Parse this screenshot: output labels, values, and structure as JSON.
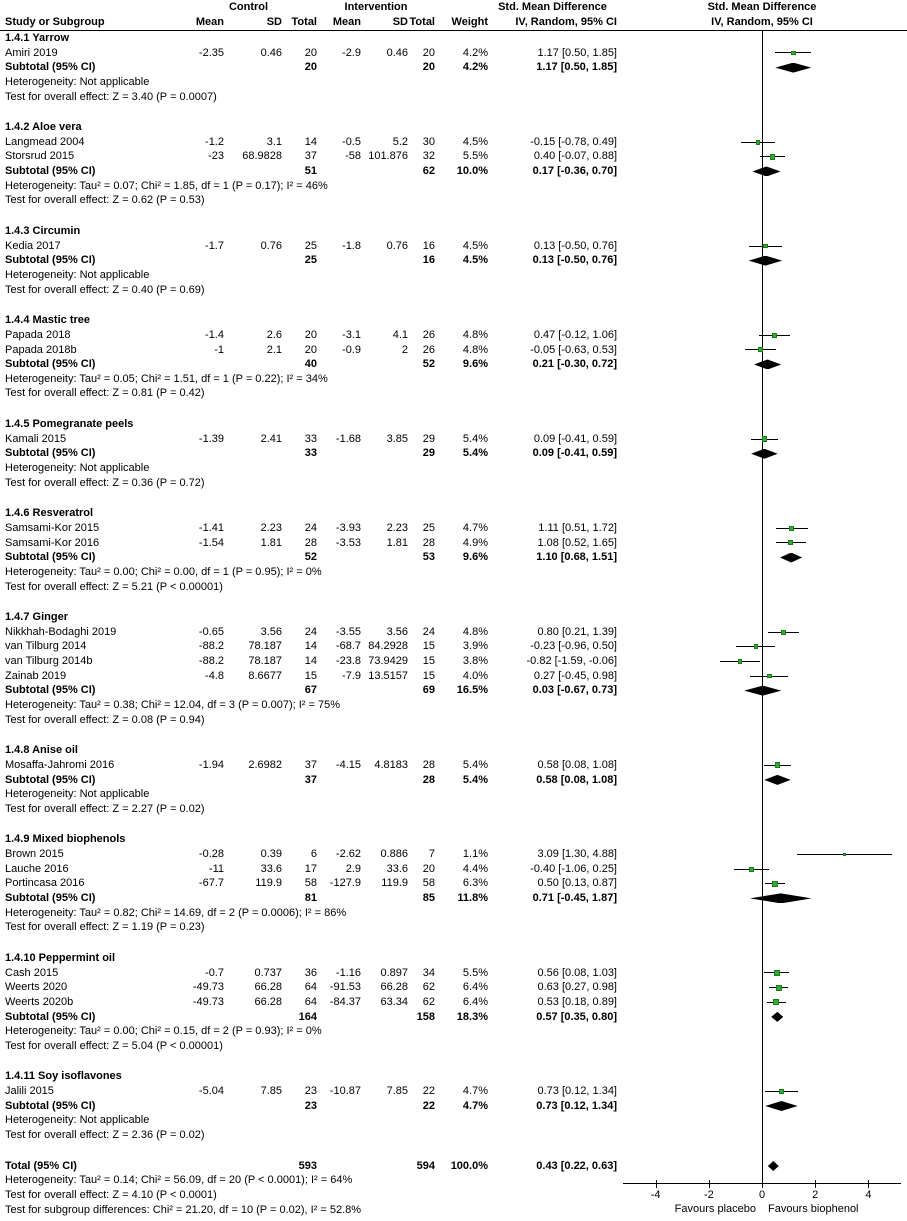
{
  "chart_data": {
    "type": "forest",
    "title_columns": {
      "study_or_subgroup": "Study or Subgroup",
      "control": "Control",
      "intervention": "Intervention",
      "smd_table": "Std. Mean Difference",
      "smd_plot": "Std. Mean Difference",
      "mean": "Mean",
      "sd": "SD",
      "total": "Total",
      "weight": "Weight",
      "iv_random_table": "IV, Random, 95% CI",
      "iv_random_plot": "IV, Random, 95% CI"
    },
    "labels": {
      "subtotal": "Subtotal (95% CI)",
      "total": "Total (95% CI)"
    },
    "colors": {
      "marker_green": "#33aa33",
      "line_black": "#000000",
      "diamond_black": "#000000"
    },
    "sections": [
      {
        "label": "1.4.1 Yarrow",
        "studies": [
          {
            "name": "Amiri 2019",
            "c_mean": "-2.35",
            "c_sd": "0.46",
            "c_total": "20",
            "i_mean": "-2.9",
            "i_sd": "0.46",
            "i_total": "20",
            "weight": "4.2%",
            "ci": "1.17 [0.50, 1.85]",
            "est": 1.17,
            "lo": 0.5,
            "hi": 1.85,
            "w": 4.2
          }
        ],
        "subtotal": {
          "c_total": "20",
          "i_total": "20",
          "weight": "4.2%",
          "ci": "1.17 [0.50, 1.85]",
          "est": 1.17,
          "lo": 0.5,
          "hi": 1.85
        },
        "heterogeneity": "Heterogeneity: Not applicable",
        "test": "Test for overall effect: Z = 3.40 (P = 0.0007)"
      },
      {
        "label": "1.4.2 Aloe vera",
        "studies": [
          {
            "name": "Langmead 2004",
            "c_mean": "-1.2",
            "c_sd": "3.1",
            "c_total": "14",
            "i_mean": "-0.5",
            "i_sd": "5.2",
            "i_total": "30",
            "weight": "4.5%",
            "ci": "-0.15 [-0.78, 0.49]",
            "est": -0.15,
            "lo": -0.78,
            "hi": 0.49,
            "w": 4.5
          },
          {
            "name": "Storsrud 2015",
            "c_mean": "-23",
            "c_sd": "68.9828",
            "c_total": "37",
            "i_mean": "-58",
            "i_sd": "101.876",
            "i_total": "32",
            "weight": "5.5%",
            "ci": "0.40 [-0.07, 0.88]",
            "est": 0.4,
            "lo": -0.07,
            "hi": 0.88,
            "w": 5.5
          }
        ],
        "subtotal": {
          "c_total": "51",
          "i_total": "62",
          "weight": "10.0%",
          "ci": "0.17 [-0.36, 0.70]",
          "est": 0.17,
          "lo": -0.36,
          "hi": 0.7
        },
        "heterogeneity": "Heterogeneity: Tau² = 0.07; Chi² = 1.85, df = 1 (P = 0.17); I² = 46%",
        "test": "Test for overall effect: Z = 0.62 (P = 0.53)"
      },
      {
        "label": "1.4.3 Circumin",
        "studies": [
          {
            "name": "Kedia 2017",
            "c_mean": "-1.7",
            "c_sd": "0.76",
            "c_total": "25",
            "i_mean": "-1.8",
            "i_sd": "0.76",
            "i_total": "16",
            "weight": "4.5%",
            "ci": "0.13 [-0.50, 0.76]",
            "est": 0.13,
            "lo": -0.5,
            "hi": 0.76,
            "w": 4.5
          }
        ],
        "subtotal": {
          "c_total": "25",
          "i_total": "16",
          "weight": "4.5%",
          "ci": "0.13 [-0.50, 0.76]",
          "est": 0.13,
          "lo": -0.5,
          "hi": 0.76
        },
        "heterogeneity": "Heterogeneity: Not applicable",
        "test": "Test for overall effect: Z = 0.40 (P = 0.69)"
      },
      {
        "label": "1.4.4 Mastic tree",
        "studies": [
          {
            "name": "Papada 2018",
            "c_mean": "-1.4",
            "c_sd": "2.6",
            "c_total": "20",
            "i_mean": "-3.1",
            "i_sd": "4.1",
            "i_total": "26",
            "weight": "4.8%",
            "ci": "0.47 [-0.12, 1.06]",
            "est": 0.47,
            "lo": -0.12,
            "hi": 1.06,
            "w": 4.8
          },
          {
            "name": "Papada 2018b",
            "c_mean": "-1",
            "c_sd": "2.1",
            "c_total": "20",
            "i_mean": "-0.9",
            "i_sd": "2",
            "i_total": "26",
            "weight": "4.8%",
            "ci": "-0.05 [-0.63, 0.53]",
            "est": -0.05,
            "lo": -0.63,
            "hi": 0.53,
            "w": 4.8
          }
        ],
        "subtotal": {
          "c_total": "40",
          "i_total": "52",
          "weight": "9.6%",
          "ci": "0.21 [-0.30, 0.72]",
          "est": 0.21,
          "lo": -0.3,
          "hi": 0.72
        },
        "heterogeneity": "Heterogeneity: Tau² = 0.05; Chi² = 1.51, df = 1 (P = 0.22); I² = 34%",
        "test": "Test for overall effect: Z = 0.81 (P = 0.42)"
      },
      {
        "label": "1.4.5 Pomegranate peels",
        "studies": [
          {
            "name": "Kamali 2015",
            "c_mean": "-1.39",
            "c_sd": "2.41",
            "c_total": "33",
            "i_mean": "-1.68",
            "i_sd": "3.85",
            "i_total": "29",
            "weight": "5.4%",
            "ci": "0.09 [-0.41, 0.59]",
            "est": 0.09,
            "lo": -0.41,
            "hi": 0.59,
            "w": 5.4
          }
        ],
        "subtotal": {
          "c_total": "33",
          "i_total": "29",
          "weight": "5.4%",
          "ci": "0.09 [-0.41, 0.59]",
          "est": 0.09,
          "lo": -0.41,
          "hi": 0.59
        },
        "heterogeneity": "Heterogeneity: Not applicable",
        "test": "Test for overall effect: Z = 0.36 (P = 0.72)"
      },
      {
        "label": "1.4.6 Resveratrol",
        "studies": [
          {
            "name": "Samsami-Kor 2015",
            "c_mean": "-1.41",
            "c_sd": "2.23",
            "c_total": "24",
            "i_mean": "-3.93",
            "i_sd": "2.23",
            "i_total": "25",
            "weight": "4.7%",
            "ci": "1.11 [0.51, 1.72]",
            "est": 1.11,
            "lo": 0.51,
            "hi": 1.72,
            "w": 4.7
          },
          {
            "name": "Samsami-Kor 2016",
            "c_mean": "-1.54",
            "c_sd": "1.81",
            "c_total": "28",
            "i_mean": "-3.53",
            "i_sd": "1.81",
            "i_total": "28",
            "weight": "4.9%",
            "ci": "1.08 [0.52, 1.65]",
            "est": 1.08,
            "lo": 0.52,
            "hi": 1.65,
            "w": 4.9
          }
        ],
        "subtotal": {
          "c_total": "52",
          "i_total": "53",
          "weight": "9.6%",
          "ci": "1.10 [0.68, 1.51]",
          "est": 1.1,
          "lo": 0.68,
          "hi": 1.51
        },
        "heterogeneity": "Heterogeneity: Tau² = 0.00; Chi² = 0.00, df = 1 (P = 0.95); I² = 0%",
        "test": "Test for overall effect: Z = 5.21 (P < 0.00001)"
      },
      {
        "label": "1.4.7 Ginger",
        "studies": [
          {
            "name": "Nikkhah-Bodaghi 2019",
            "c_mean": "-0.65",
            "c_sd": "3.56",
            "c_total": "24",
            "i_mean": "-3.55",
            "i_sd": "3.56",
            "i_total": "24",
            "weight": "4.8%",
            "ci": "0.80 [0.21, 1.39]",
            "est": 0.8,
            "lo": 0.21,
            "hi": 1.39,
            "w": 4.8
          },
          {
            "name": "van Tilburg 2014",
            "c_mean": "-88.2",
            "c_sd": "78.187",
            "c_total": "14",
            "i_mean": "-68.7",
            "i_sd": "84.2928",
            "i_total": "15",
            "weight": "3.9%",
            "ci": "-0.23 [-0.96, 0.50]",
            "est": -0.23,
            "lo": -0.96,
            "hi": 0.5,
            "w": 3.9
          },
          {
            "name": "van Tilburg 2014b",
            "c_mean": "-88.2",
            "c_sd": "78.187",
            "c_total": "14",
            "i_mean": "-23.8",
            "i_sd": "73.9429",
            "i_total": "15",
            "weight": "3.8%",
            "ci": "-0.82 [-1.59, -0.06]",
            "est": -0.82,
            "lo": -1.59,
            "hi": -0.06,
            "w": 3.8
          },
          {
            "name": "Zainab 2019",
            "c_mean": "-4.8",
            "c_sd": "8.6677",
            "c_total": "15",
            "i_mean": "-7.9",
            "i_sd": "13.5157",
            "i_total": "15",
            "weight": "4.0%",
            "ci": "0.27 [-0.45, 0.98]",
            "est": 0.27,
            "lo": -0.45,
            "hi": 0.98,
            "w": 4.0
          }
        ],
        "subtotal": {
          "c_total": "67",
          "i_total": "69",
          "weight": "16.5%",
          "ci": "0.03 [-0.67, 0.73]",
          "est": 0.03,
          "lo": -0.67,
          "hi": 0.73
        },
        "heterogeneity": "Heterogeneity: Tau² = 0.38; Chi² = 12.04, df = 3 (P = 0.007); I² = 75%",
        "test": "Test for overall effect: Z = 0.08 (P = 0.94)"
      },
      {
        "label": "1.4.8 Anise oil",
        "studies": [
          {
            "name": "Mosaffa-Jahromi 2016",
            "c_mean": "-1.94",
            "c_sd": "2.6982",
            "c_total": "37",
            "i_mean": "-4.15",
            "i_sd": "4.8183",
            "i_total": "28",
            "weight": "5.4%",
            "ci": "0.58 [0.08, 1.08]",
            "est": 0.58,
            "lo": 0.08,
            "hi": 1.08,
            "w": 5.4
          }
        ],
        "subtotal": {
          "c_total": "37",
          "i_total": "28",
          "weight": "5.4%",
          "ci": "0.58 [0.08, 1.08]",
          "est": 0.58,
          "lo": 0.08,
          "hi": 1.08
        },
        "heterogeneity": "Heterogeneity: Not applicable",
        "test": "Test for overall effect: Z = 2.27 (P = 0.02)"
      },
      {
        "label": "1.4.9 Mixed biophenols",
        "studies": [
          {
            "name": "Brown 2015",
            "c_mean": "-0.28",
            "c_sd": "0.39",
            "c_total": "6",
            "i_mean": "-2.62",
            "i_sd": "0.886",
            "i_total": "7",
            "weight": "1.1%",
            "ci": "3.09 [1.30, 4.88]",
            "est": 3.09,
            "lo": 1.3,
            "hi": 4.88,
            "w": 1.1
          },
          {
            "name": "Lauche 2016",
            "c_mean": "-11",
            "c_sd": "33.6",
            "c_total": "17",
            "i_mean": "2.9",
            "i_sd": "33.6",
            "i_total": "20",
            "weight": "4.4%",
            "ci": "-0.40 [-1.06, 0.25]",
            "est": -0.4,
            "lo": -1.06,
            "hi": 0.25,
            "w": 4.4
          },
          {
            "name": "Portincasa 2016",
            "c_mean": "-67.7",
            "c_sd": "119.9",
            "c_total": "58",
            "i_mean": "-127.9",
            "i_sd": "119.9",
            "i_total": "58",
            "weight": "6.3%",
            "ci": "0.50 [0.13, 0.87]",
            "est": 0.5,
            "lo": 0.13,
            "hi": 0.87,
            "w": 6.3
          }
        ],
        "subtotal": {
          "c_total": "81",
          "i_total": "85",
          "weight": "11.8%",
          "ci": "0.71 [-0.45, 1.87]",
          "est": 0.71,
          "lo": -0.45,
          "hi": 1.87
        },
        "heterogeneity": "Heterogeneity: Tau² = 0.82; Chi² = 14.69, df = 2 (P = 0.0006); I² = 86%",
        "test": "Test for overall effect: Z = 1.19 (P = 0.23)"
      },
      {
        "label": "1.4.10 Peppermint oil",
        "studies": [
          {
            "name": "Cash 2015",
            "c_mean": "-0.7",
            "c_sd": "0.737",
            "c_total": "36",
            "i_mean": "-1.16",
            "i_sd": "0.897",
            "i_total": "34",
            "weight": "5.5%",
            "ci": "0.56 [0.08, 1.03]",
            "est": 0.56,
            "lo": 0.08,
            "hi": 1.03,
            "w": 5.5
          },
          {
            "name": "Weerts 2020",
            "c_mean": "-49.73",
            "c_sd": "66.28",
            "c_total": "64",
            "i_mean": "-91.53",
            "i_sd": "66.28",
            "i_total": "62",
            "weight": "6.4%",
            "ci": "0.63 [0.27, 0.98]",
            "est": 0.63,
            "lo": 0.27,
            "hi": 0.98,
            "w": 6.4
          },
          {
            "name": "Weerts 2020b",
            "c_mean": "-49.73",
            "c_sd": "66.28",
            "c_total": "64",
            "i_mean": "-84.37",
            "i_sd": "63.34",
            "i_total": "62",
            "weight": "6.4%",
            "ci": "0.53 [0.18, 0.89]",
            "est": 0.53,
            "lo": 0.18,
            "hi": 0.89,
            "w": 6.4
          }
        ],
        "subtotal": {
          "c_total": "164",
          "i_total": "158",
          "weight": "18.3%",
          "ci": "0.57 [0.35, 0.80]",
          "est": 0.57,
          "lo": 0.35,
          "hi": 0.8
        },
        "heterogeneity": "Heterogeneity: Tau² = 0.00; Chi² = 0.15, df = 2 (P = 0.93); I² = 0%",
        "test": "Test for overall effect: Z = 5.04 (P < 0.00001)"
      },
      {
        "label": "1.4.11 Soy isoflavones",
        "studies": [
          {
            "name": "Jalili 2015",
            "c_mean": "-5.04",
            "c_sd": "7.85",
            "c_total": "23",
            "i_mean": "-10.87",
            "i_sd": "7.85",
            "i_total": "22",
            "weight": "4.7%",
            "ci": "0.73 [0.12, 1.34]",
            "est": 0.73,
            "lo": 0.12,
            "hi": 1.34,
            "w": 4.7
          }
        ],
        "subtotal": {
          "c_total": "23",
          "i_total": "22",
          "weight": "4.7%",
          "ci": "0.73 [0.12, 1.34]",
          "est": 0.73,
          "lo": 0.12,
          "hi": 1.34
        },
        "heterogeneity": "Heterogeneity: Not applicable",
        "test": "Test for overall effect: Z = 2.36 (P = 0.02)"
      }
    ],
    "total": {
      "c_total": "593",
      "i_total": "594",
      "weight": "100.0%",
      "ci": "0.43 [0.22, 0.63]",
      "est": 0.43,
      "lo": 0.22,
      "hi": 0.63
    },
    "footer": {
      "heterogeneity": "Heterogeneity: Tau² = 0.14; Chi² = 56.09, df = 20 (P < 0.0001); I² = 64%",
      "test_overall": "Test for overall effect: Z = 4.10 (P < 0.0001)",
      "test_subgroup": "Test for subgroup differences: Chi² = 21.20, df = 10 (P = 0.02), I² = 52.8%"
    },
    "axis": {
      "ticks": [
        "-4",
        "-2",
        "0",
        "2",
        "4"
      ],
      "xmin": -5,
      "xmax": 5,
      "favours_left": "Favours placebo",
      "favours_right": "Favours biophenol"
    }
  }
}
